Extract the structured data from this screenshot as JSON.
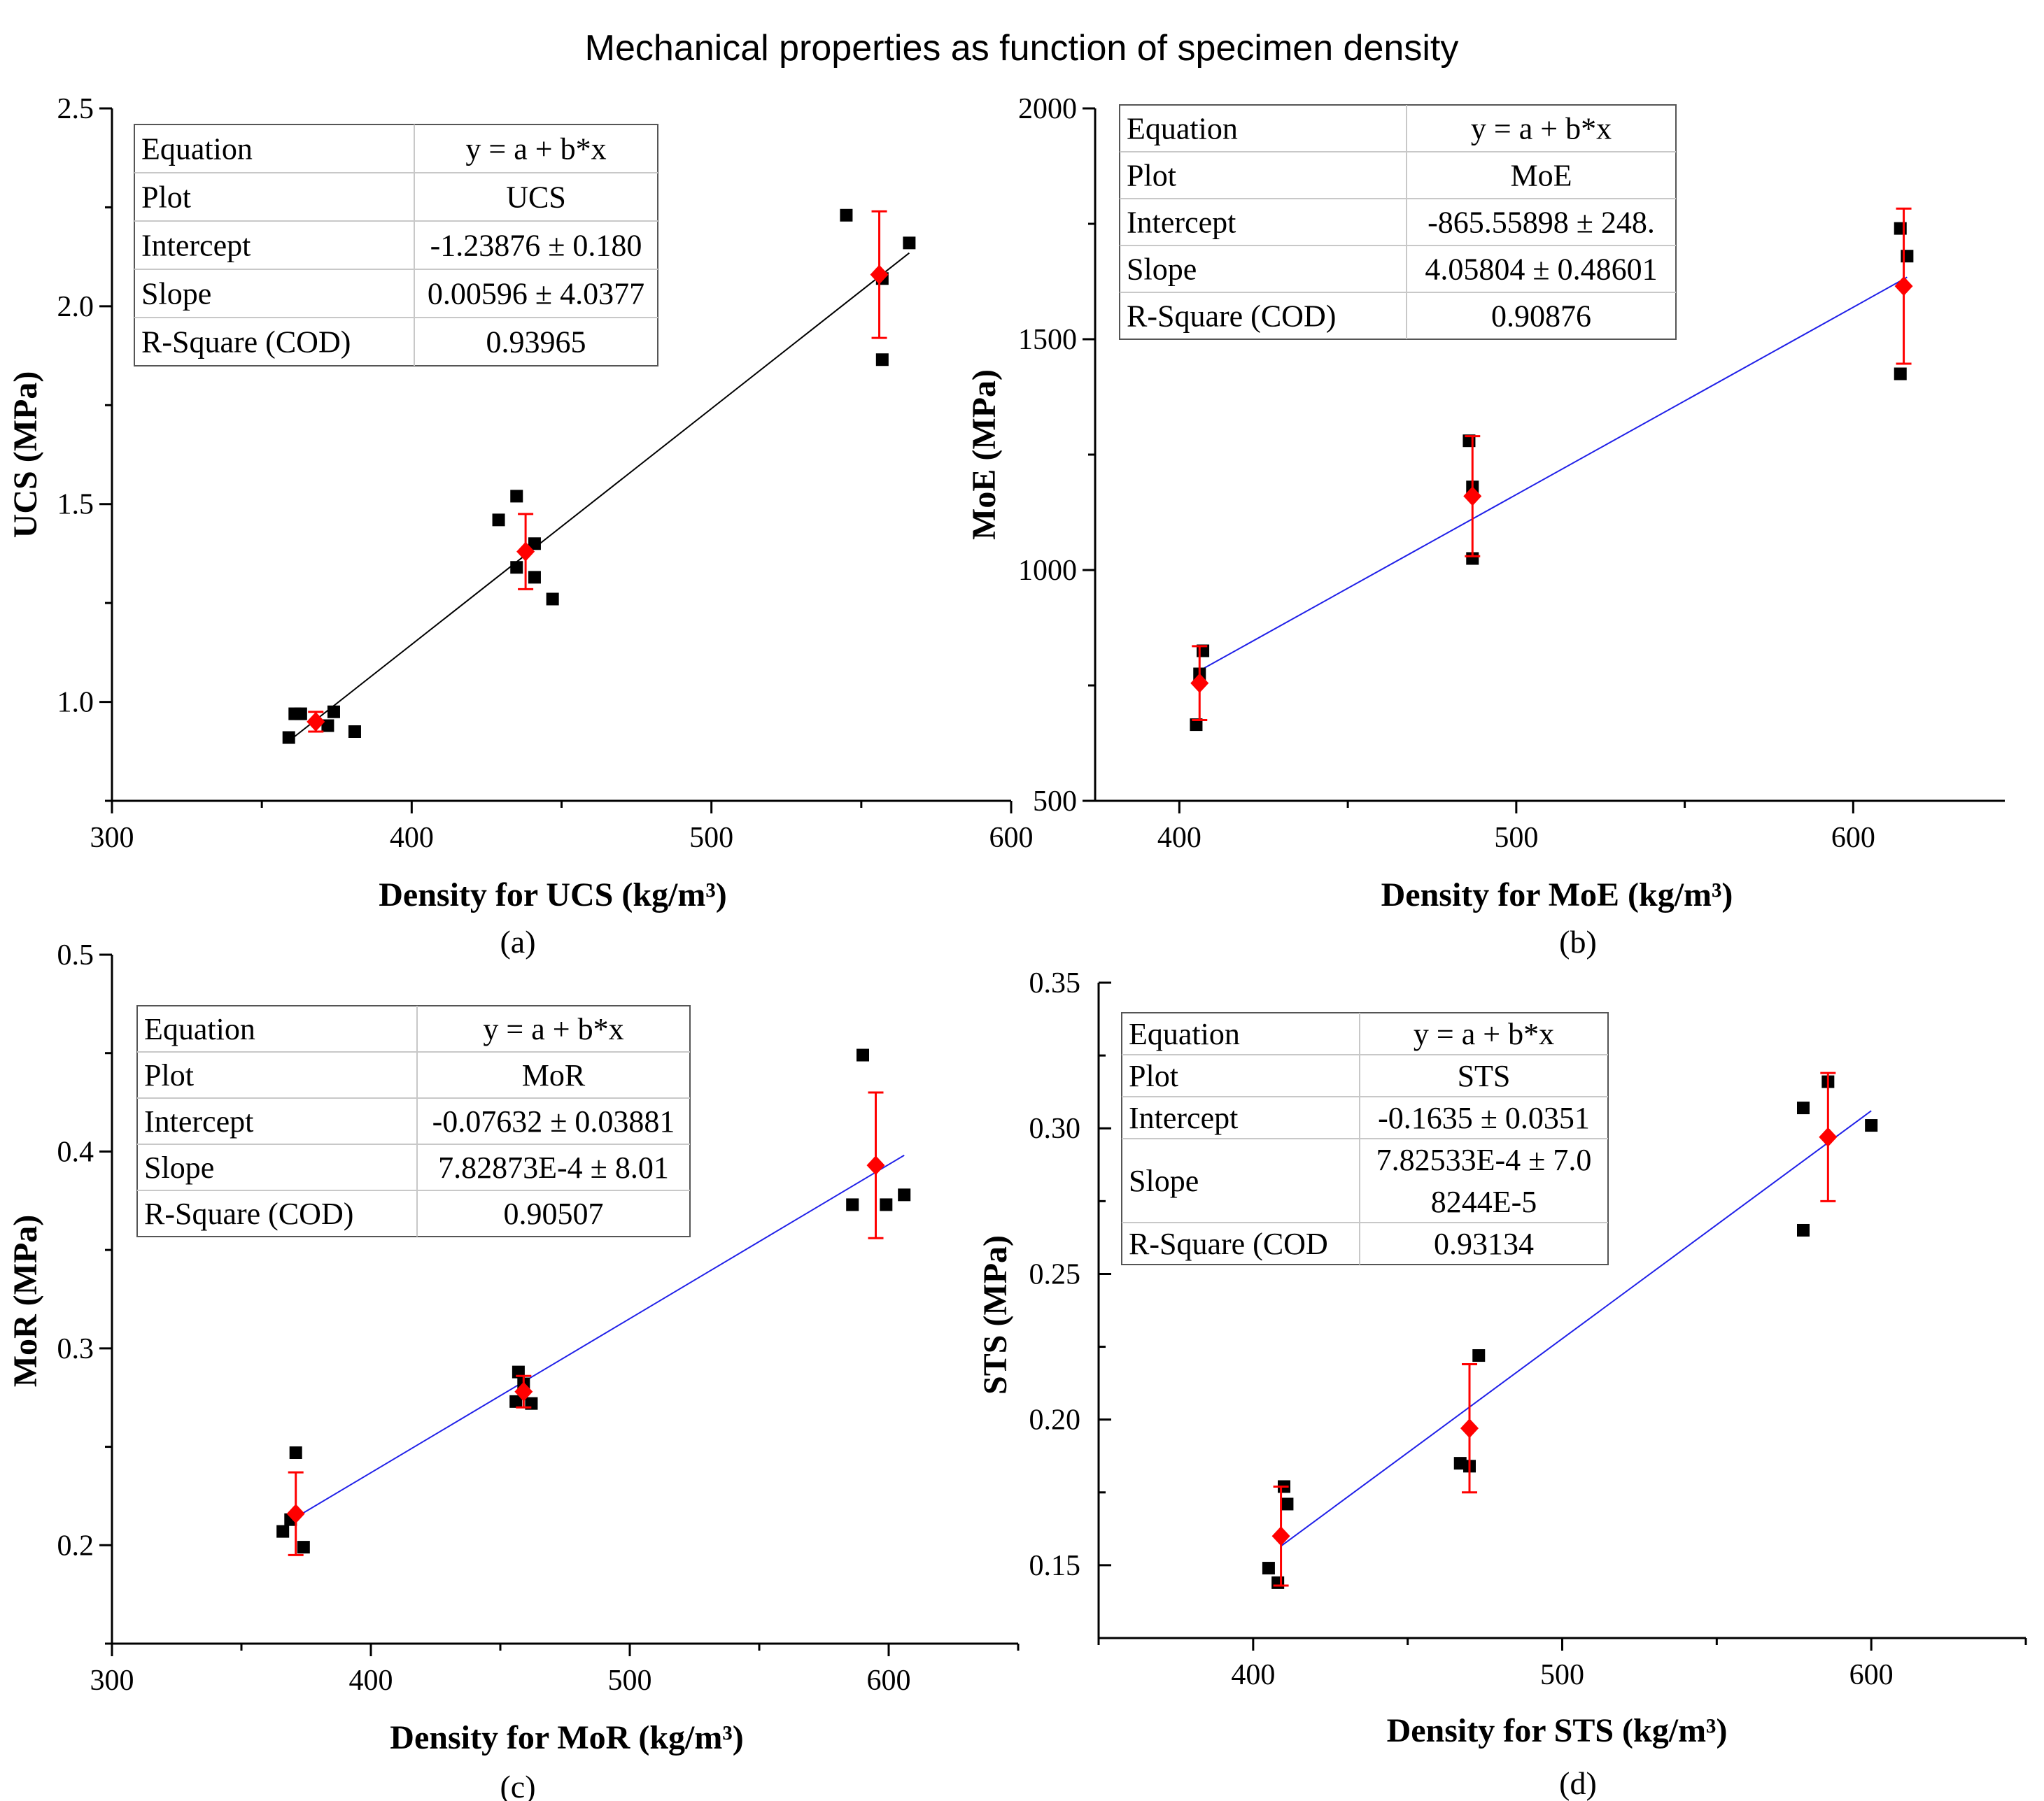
{
  "title": "Mechanical properties as function of specimen density",
  "colors": {
    "points": "#000000",
    "mean": "#ff0000",
    "fit_blue": "#2020e8",
    "fit_black": "#000000"
  },
  "chart_data": [
    {
      "id": "a",
      "type": "scatter",
      "panel_label": "(a)",
      "xlabel": "Density for UCS (kg/m³)",
      "ylabel": "UCS (MPa)",
      "xlim": [
        300,
        600
      ],
      "ylim": [
        0.75,
        2.5
      ],
      "xticks": [
        300,
        400,
        500,
        600
      ],
      "xtick_labels": [
        "300",
        "400",
        "500",
        "600"
      ],
      "yticks": [
        1.0,
        1.5,
        2.0,
        2.5
      ],
      "ytick_labels": [
        "1.0",
        "1.5",
        "2.0",
        "2.5"
      ],
      "fit_color": "fit_black",
      "fit": {
        "intercept": -1.23876,
        "slope": 0.00596,
        "x_range": [
          360,
          566
        ]
      },
      "points": [
        {
          "x": 359,
          "y": 0.91
        },
        {
          "x": 361,
          "y": 0.97
        },
        {
          "x": 363,
          "y": 0.97
        },
        {
          "x": 372,
          "y": 0.94
        },
        {
          "x": 374,
          "y": 0.975
        },
        {
          "x": 381,
          "y": 0.925
        },
        {
          "x": 429,
          "y": 1.46
        },
        {
          "x": 435,
          "y": 1.52
        },
        {
          "x": 435,
          "y": 1.34
        },
        {
          "x": 441,
          "y": 1.4
        },
        {
          "x": 441,
          "y": 1.315
        },
        {
          "x": 447,
          "y": 1.26
        },
        {
          "x": 545,
          "y": 2.23
        },
        {
          "x": 557,
          "y": 2.07
        },
        {
          "x": 557,
          "y": 1.865
        },
        {
          "x": 566,
          "y": 2.16
        }
      ],
      "means": [
        {
          "x": 368,
          "y": 0.95,
          "err": 0.025
        },
        {
          "x": 438,
          "y": 1.38,
          "err": 0.095
        },
        {
          "x": 556,
          "y": 2.08,
          "err": 0.16
        }
      ],
      "table": [
        [
          "Equation",
          "y = a + b*x"
        ],
        [
          "Plot",
          "UCS"
        ],
        [
          "Intercept",
          "-1.23876 ± 0.180"
        ],
        [
          "Slope",
          "0.00596 ± 4.0377"
        ],
        [
          "R-Square (COD)",
          "0.93965"
        ]
      ]
    },
    {
      "id": "b",
      "type": "scatter",
      "panel_label": "(b)",
      "xlabel": "Density for MoE (kg/m³)",
      "ylabel": "MoE (MPa)",
      "xlim": [
        375,
        645
      ],
      "ylim": [
        500,
        2000
      ],
      "xticks": [
        400,
        500,
        600
      ],
      "xtick_labels": [
        "400",
        "500",
        "600"
      ],
      "yticks": [
        500,
        1000,
        1500,
        2000
      ],
      "ytick_labels": [
        "500",
        "1000",
        "1500",
        "2000"
      ],
      "fit_color": "fit_blue",
      "fit": {
        "intercept": -865.55898,
        "slope": 4.05804,
        "x_range": [
          406,
          616
        ]
      },
      "points": [
        {
          "x": 405,
          "y": 665
        },
        {
          "x": 406,
          "y": 775
        },
        {
          "x": 407,
          "y": 825
        },
        {
          "x": 486,
          "y": 1280
        },
        {
          "x": 487,
          "y": 1180
        },
        {
          "x": 487,
          "y": 1025
        },
        {
          "x": 614,
          "y": 1740
        },
        {
          "x": 614,
          "y": 1425
        },
        {
          "x": 616,
          "y": 1680
        }
      ],
      "means": [
        {
          "x": 406,
          "y": 755,
          "err": 80
        },
        {
          "x": 487,
          "y": 1160,
          "err": 130
        },
        {
          "x": 615,
          "y": 1615,
          "err": 168
        }
      ],
      "table": [
        [
          "Equation",
          "y = a + b*x"
        ],
        [
          "Plot",
          "MoE"
        ],
        [
          "Intercept",
          "-865.55898 ± 248."
        ],
        [
          "Slope",
          "4.05804 ± 0.48601"
        ],
        [
          "R-Square (COD)",
          "0.90876"
        ]
      ]
    },
    {
      "id": "c",
      "type": "scatter",
      "panel_label": "(c)",
      "xlabel": "Density for MoR (kg/m³)",
      "ylabel": "MoR (MPa)",
      "xlim": [
        300,
        650
      ],
      "ylim": [
        0.15,
        0.5
      ],
      "xticks": [
        300,
        400,
        500,
        600
      ],
      "xtick_labels": [
        "300",
        "400",
        "500",
        "600"
      ],
      "yticks": [
        0.2,
        0.3,
        0.4,
        0.5
      ],
      "ytick_labels": [
        "0.2",
        "0.3",
        "0.4",
        "0.5"
      ],
      "fit_color": "fit_blue",
      "fit": {
        "intercept": -0.07632,
        "slope": 0.000782873,
        "x_range": [
          372,
          606
        ]
      },
      "points": [
        {
          "x": 366,
          "y": 0.207
        },
        {
          "x": 369,
          "y": 0.213
        },
        {
          "x": 371,
          "y": 0.247
        },
        {
          "x": 374,
          "y": 0.199
        },
        {
          "x": 456,
          "y": 0.273
        },
        {
          "x": 457,
          "y": 0.288
        },
        {
          "x": 459,
          "y": 0.282
        },
        {
          "x": 462,
          "y": 0.272
        },
        {
          "x": 586,
          "y": 0.373
        },
        {
          "x": 590,
          "y": 0.449
        },
        {
          "x": 599,
          "y": 0.373
        },
        {
          "x": 606,
          "y": 0.378
        }
      ],
      "means": [
        {
          "x": 371,
          "y": 0.216,
          "err": 0.021
        },
        {
          "x": 459,
          "y": 0.278,
          "err": 0.008
        },
        {
          "x": 595,
          "y": 0.393,
          "err": 0.037
        }
      ],
      "table": [
        [
          "Equation",
          "y = a + b*x"
        ],
        [
          "Plot",
          "MoR"
        ],
        [
          "Intercept",
          "-0.07632 ± 0.03881"
        ],
        [
          "Slope",
          "7.82873E-4 ± 8.01"
        ],
        [
          "R-Square (COD)",
          "0.90507"
        ]
      ]
    },
    {
      "id": "d",
      "type": "scatter",
      "panel_label": "(d)",
      "xlabel": "Density for STS (kg/m³)",
      "ylabel": "STS (MPa)",
      "xlim": [
        350,
        650
      ],
      "ylim": [
        0.125,
        0.35
      ],
      "xticks": [
        400,
        500,
        600
      ],
      "xtick_labels": [
        "400",
        "500",
        "600"
      ],
      "yticks": [
        0.15,
        0.2,
        0.25,
        0.3,
        0.35
      ],
      "ytick_labels": [
        "0.15",
        "0.20",
        "0.25",
        "0.30",
        "0.35"
      ],
      "fit_color": "fit_blue",
      "fit": {
        "intercept": -0.1635,
        "slope": 0.000782533,
        "x_range": [
          409,
          600
        ]
      },
      "points": [
        {
          "x": 405,
          "y": 0.149
        },
        {
          "x": 408,
          "y": 0.144
        },
        {
          "x": 410,
          "y": 0.177
        },
        {
          "x": 411,
          "y": 0.171
        },
        {
          "x": 467,
          "y": 0.185
        },
        {
          "x": 470,
          "y": 0.184
        },
        {
          "x": 473,
          "y": 0.222
        },
        {
          "x": 578,
          "y": 0.307
        },
        {
          "x": 578,
          "y": 0.265
        },
        {
          "x": 586,
          "y": 0.316
        },
        {
          "x": 600,
          "y": 0.301
        }
      ],
      "means": [
        {
          "x": 409,
          "y": 0.16,
          "err": 0.017
        },
        {
          "x": 470,
          "y": 0.197,
          "err": 0.022
        },
        {
          "x": 586,
          "y": 0.297,
          "err": 0.022
        }
      ],
      "table": [
        [
          "Equation",
          "y = a + b*x"
        ],
        [
          "Plot",
          "STS"
        ],
        [
          "Intercept",
          "-0.1635 ± 0.0351"
        ],
        [
          "Slope",
          [
            "7.82533E-4 ± 7.0",
            "8244E-5"
          ]
        ],
        [
          "R-Square (COD",
          "0.93134"
        ]
      ]
    }
  ]
}
